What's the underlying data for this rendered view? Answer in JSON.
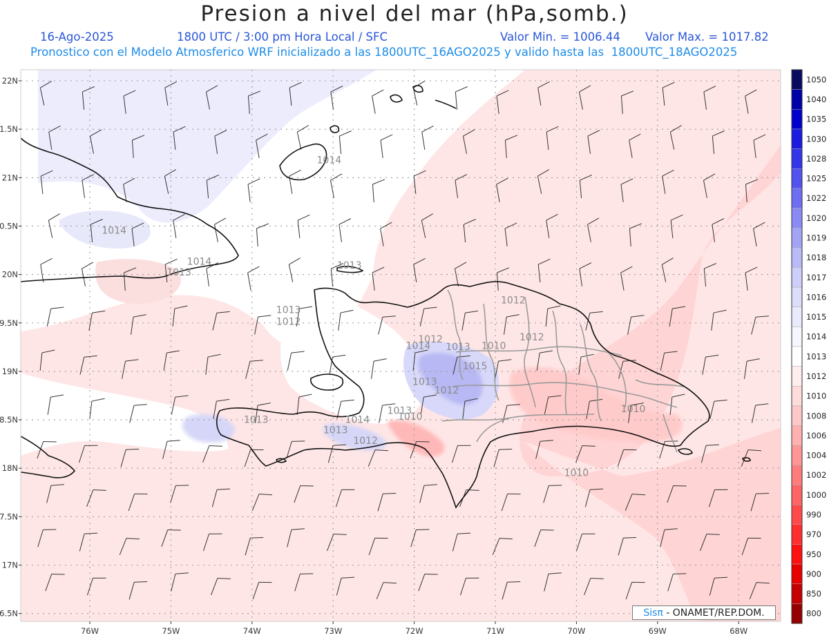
{
  "title": "Presion a nivel del mar (hPa,somb.)",
  "date": "16-Ago-2025",
  "time_info": "1800 UTC / 3:00 pm Hora Local / SFC",
  "min_label": "Valor Min. = 1006.44",
  "max_label": "Valor Max. = 1017.82",
  "subtitle": "Pronostico con el Modelo Atmosferico WRF inicializado a las 1800UTC_16AGO2025 y valido hasta las  1800UTC_18AGO2025",
  "credit": {
    "brand": "Sisπ",
    "rest": " - ONAMET/REP.DOM."
  },
  "lat_labels": [
    "22N",
    "1.5N",
    "21N",
    "0.5N",
    "20N",
    "9.5N",
    "19N",
    "8.5N",
    "18N",
    "7.5N",
    "17N",
    "6.5N"
  ],
  "lon_labels": [
    "76W",
    "75W",
    "74W",
    "73W",
    "72W",
    "71W",
    "70W",
    "69W",
    "68W"
  ],
  "colorbar": {
    "labels": [
      "1050",
      "1040",
      "1035",
      "1030",
      "1028",
      "1025",
      "1022",
      "1020",
      "1019",
      "1018",
      "1017",
      "1016",
      "1015",
      "1014",
      "1013",
      "1012",
      "1010",
      "1008",
      "1006",
      "1004",
      "1002",
      "1000",
      "990",
      "970",
      "950",
      "900",
      "850",
      "800"
    ],
    "colors": [
      "#0a0a60",
      "#0000a8",
      "#0000cc",
      "#1a1ae0",
      "#3434ea",
      "#5252f0",
      "#6e6ef2",
      "#8a8af4",
      "#a4a4f6",
      "#babaf8",
      "#ceceFA",
      "#dcdcfb",
      "#eaeafd",
      "#f6f6ff",
      "#ffffff",
      "#ffeeee",
      "#ffdcdc",
      "#ffc8c8",
      "#ffb0b0",
      "#ff9696",
      "#ff7c7c",
      "#ff6464",
      "#ff4a4a",
      "#ff2e2e",
      "#ff1010",
      "#e80000",
      "#c40000",
      "#960000"
    ]
  },
  "contour_labels": [
    {
      "text": "1014",
      "lon": -73.05,
      "lat": 21.15
    },
    {
      "text": "1014",
      "lon": -75.7,
      "lat": 20.42
    },
    {
      "text": "1014",
      "lon": -74.65,
      "lat": 20.1
    },
    {
      "text": "1013",
      "lon": -74.9,
      "lat": 19.99
    },
    {
      "text": "1013",
      "lon": -72.8,
      "lat": 20.06
    },
    {
      "text": "1012",
      "lon": -70.78,
      "lat": 19.7
    },
    {
      "text": "1013",
      "lon": -73.55,
      "lat": 19.6
    },
    {
      "text": "1012",
      "lon": -73.55,
      "lat": 19.48
    },
    {
      "text": "1014",
      "lon": -71.95,
      "lat": 19.23
    },
    {
      "text": "1012",
      "lon": -71.8,
      "lat": 19.3
    },
    {
      "text": "1013",
      "lon": -71.46,
      "lat": 19.22
    },
    {
      "text": "1010",
      "lon": -71.02,
      "lat": 19.23
    },
    {
      "text": "1012",
      "lon": -70.55,
      "lat": 19.32
    },
    {
      "text": "1015",
      "lon": -71.25,
      "lat": 19.02
    },
    {
      "text": "1013",
      "lon": -71.87,
      "lat": 18.86
    },
    {
      "text": "1012",
      "lon": -71.6,
      "lat": 18.77
    },
    {
      "text": "1013",
      "lon": -72.18,
      "lat": 18.56
    },
    {
      "text": "1010",
      "lon": -72.05,
      "lat": 18.5
    },
    {
      "text": "1014",
      "lon": -72.7,
      "lat": 18.47
    },
    {
      "text": "1013",
      "lon": -73.95,
      "lat": 18.47
    },
    {
      "text": "1013",
      "lon": -72.97,
      "lat": 18.36
    },
    {
      "text": "1012",
      "lon": -72.6,
      "lat": 18.25
    },
    {
      "text": "1010",
      "lon": -69.3,
      "lat": 18.58
    },
    {
      "text": "1010",
      "lon": -70.0,
      "lat": 17.92
    }
  ]
}
